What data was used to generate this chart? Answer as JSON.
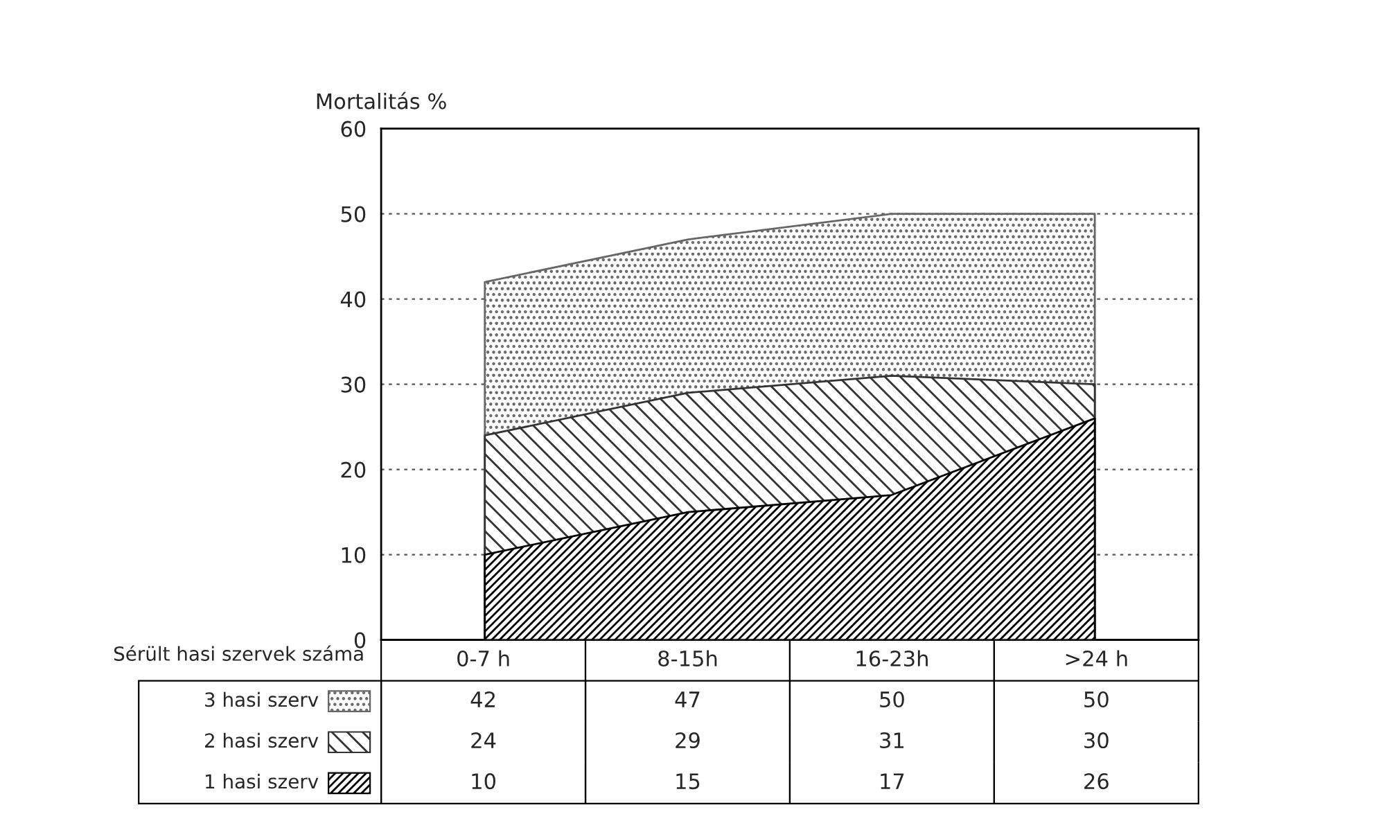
{
  "chart_data": {
    "type": "area",
    "ylabel": "Mortalitás %",
    "legend_title": "Sérült hasi szervek száma",
    "categories": [
      "0-7 h",
      "8-15h",
      "16-23h",
      ">24 h"
    ],
    "series": [
      {
        "name": "3 hasi szerv",
        "color": "#666666",
        "values": [
          42,
          47,
          50,
          50
        ]
      },
      {
        "name": "2 hasi szerv",
        "color": "#333333",
        "values": [
          24,
          29,
          31,
          30
        ]
      },
      {
        "name": "1 hasi szerv",
        "color": "#000000",
        "values": [
          10,
          15,
          17,
          26
        ]
      }
    ],
    "ylim": [
      0,
      60
    ],
    "yticks": [
      0,
      10,
      20,
      30,
      40,
      50,
      60
    ],
    "grid": "y",
    "legend": "bottom left",
    "data_labels": true,
    "tick_labels": "y"
  }
}
